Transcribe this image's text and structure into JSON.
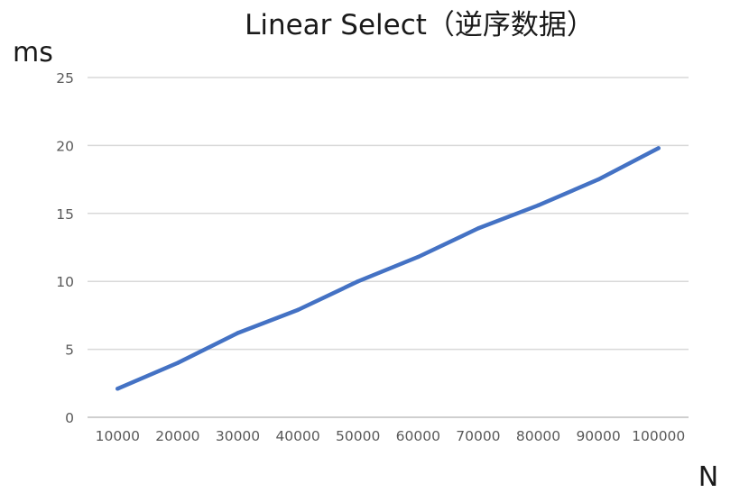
{
  "chart_data": {
    "type": "line",
    "title": "Linear Select（逆序数据）",
    "xlabel": "N",
    "ylabel": "ms",
    "categories": [
      "10000",
      "20000",
      "30000",
      "40000",
      "50000",
      "60000",
      "70000",
      "80000",
      "90000",
      "100000"
    ],
    "series": [
      {
        "color": "#4472c4",
        "values": [
          2.1,
          4.0,
          6.2,
          7.9,
          10.0,
          11.8,
          13.9,
          15.6,
          17.5,
          19.8
        ]
      }
    ],
    "ylim": [
      0,
      25
    ],
    "yticks": [
      "0",
      "5",
      "10",
      "15",
      "20",
      "25"
    ],
    "grid": true,
    "legend": "none"
  }
}
